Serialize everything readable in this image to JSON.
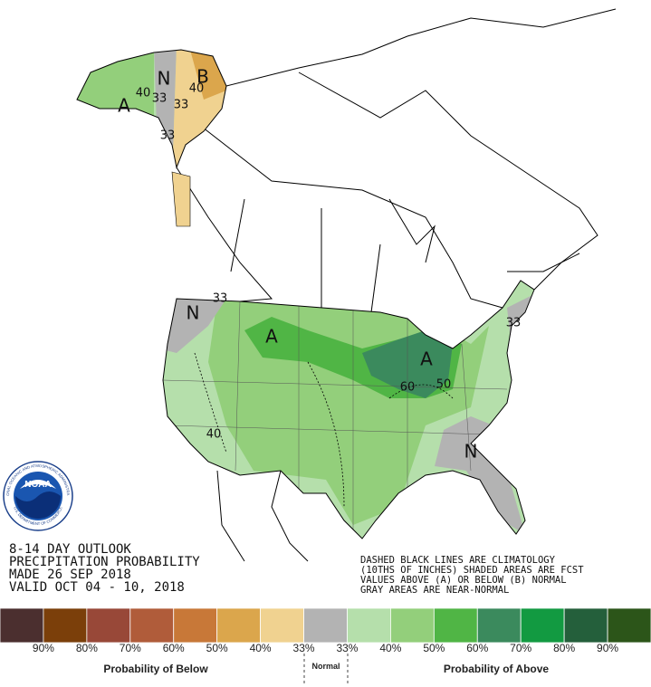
{
  "map": {
    "labels": [
      "A",
      "40",
      "33",
      "N",
      "B",
      "40",
      "33",
      "33",
      "33",
      "N",
      "A",
      "A",
      "60",
      "50",
      "33",
      "N",
      "40"
    ]
  },
  "logo": {
    "name": "NOAA",
    "ring_top": "NATIONAL OCEANIC AND ATMOSPHERIC ADMINISTRATION",
    "ring_bottom": "U.S. DEPARTMENT OF COMMERCE"
  },
  "outlook": {
    "lines": [
      "8-14 DAY OUTLOOK",
      "PRECIPITATION PROBABILITY",
      "MADE  26 SEP 2018",
      "VALID  OCT 04 - 10, 2018"
    ]
  },
  "notes": [
    "DASHED BLACK LINES ARE CLIMATOLOGY",
    "(10THS OF INCHES) SHADED AREAS ARE FCST",
    "VALUES ABOVE (A) OR BELOW (B) NORMAL",
    "GRAY AREAS ARE NEAR-NORMAL"
  ],
  "legend": {
    "colors": [
      "#4b2f2f",
      "#7b3f0a",
      "#984838",
      "#b05c3a",
      "#c87838",
      "#dba64c",
      "#f0d290",
      "#b3b3b3",
      "#b5dfab",
      "#93cf7b",
      "#50b545",
      "#3b8a5d",
      "#129a41",
      "#245f3b",
      "#2c5519"
    ],
    "labels": [
      "90%",
      "80%",
      "70%",
      "60%",
      "50%",
      "40%",
      "33%",
      "33%",
      "40%",
      "50%",
      "60%",
      "70%",
      "80%",
      "90%"
    ],
    "below": "Probability of Below",
    "normal": "Normal",
    "above": "Probability of Above"
  }
}
